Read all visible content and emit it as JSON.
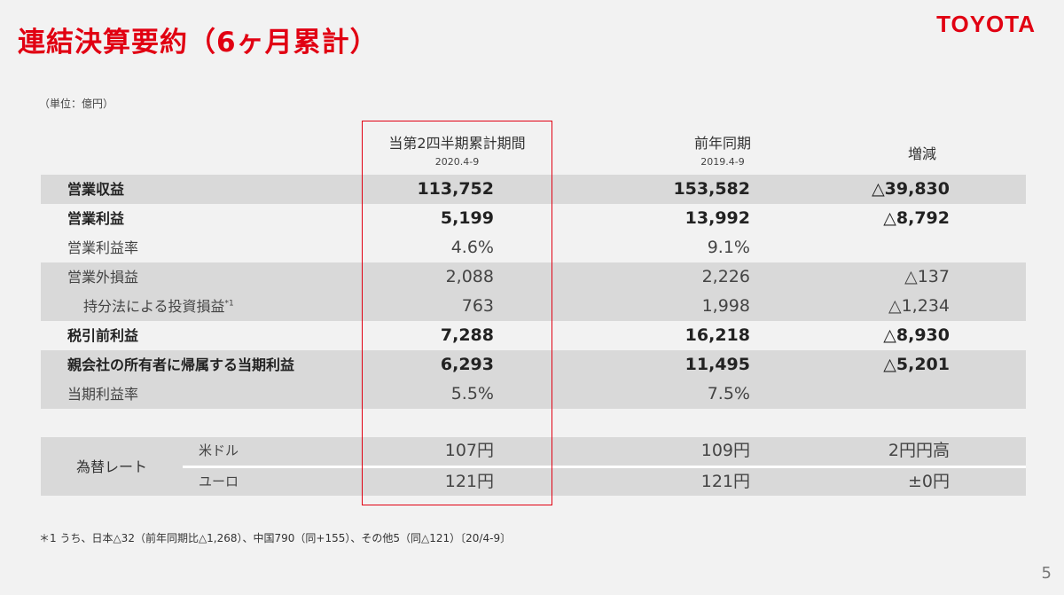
{
  "title": "連結決算要約（6ヶ月累計）",
  "logo": "TOYOTA",
  "unit_note": "（単位：億円）",
  "columns": {
    "current": {
      "label": "当第2四半期累計期間",
      "period": "2020.4-9"
    },
    "prior": {
      "label": "前年同期",
      "period": "2019.4-9"
    },
    "change": {
      "label": "増減"
    }
  },
  "rows": [
    {
      "label": "営業収益",
      "current": "113,752",
      "prior": "153,582",
      "change": "△39,830"
    },
    {
      "label": "営業利益",
      "current": "5,199",
      "prior": "13,992",
      "change": "△8,792"
    },
    {
      "label": "営業利益率",
      "current": "4.6%",
      "prior": "9.1%",
      "change": ""
    },
    {
      "label": "営業外損益",
      "current": "2,088",
      "prior": "2,226",
      "change": "△137"
    },
    {
      "label": "持分法による投資損益",
      "note": "*1",
      "current": "763",
      "prior": "1,998",
      "change": "△1,234"
    },
    {
      "label": "税引前利益",
      "current": "7,288",
      "prior": "16,218",
      "change": "△8,930"
    },
    {
      "label": "親会社の所有者に帰属する当期利益",
      "current": "6,293",
      "prior": "11,495",
      "change": "△5,201"
    },
    {
      "label": "当期利益率",
      "current": "5.5%",
      "prior": "7.5%",
      "change": ""
    }
  ],
  "fx": {
    "label": "為替レート",
    "rows": [
      {
        "currency": "米ドル",
        "current": "107円",
        "prior": "109円",
        "change": "2円円高"
      },
      {
        "currency": "ユーロ",
        "current": "121円",
        "prior": "121円",
        "change": "±0円"
      }
    ]
  },
  "footnote": "＊1 うち、日本△32（前年同期比△1,268）、中国790（同+155）、その他5（同△121）〔20/4-9〕",
  "page_number": "5",
  "colors": {
    "accent": "#e10012",
    "band": "#d9d9d9",
    "background": "#f2f2f2"
  }
}
